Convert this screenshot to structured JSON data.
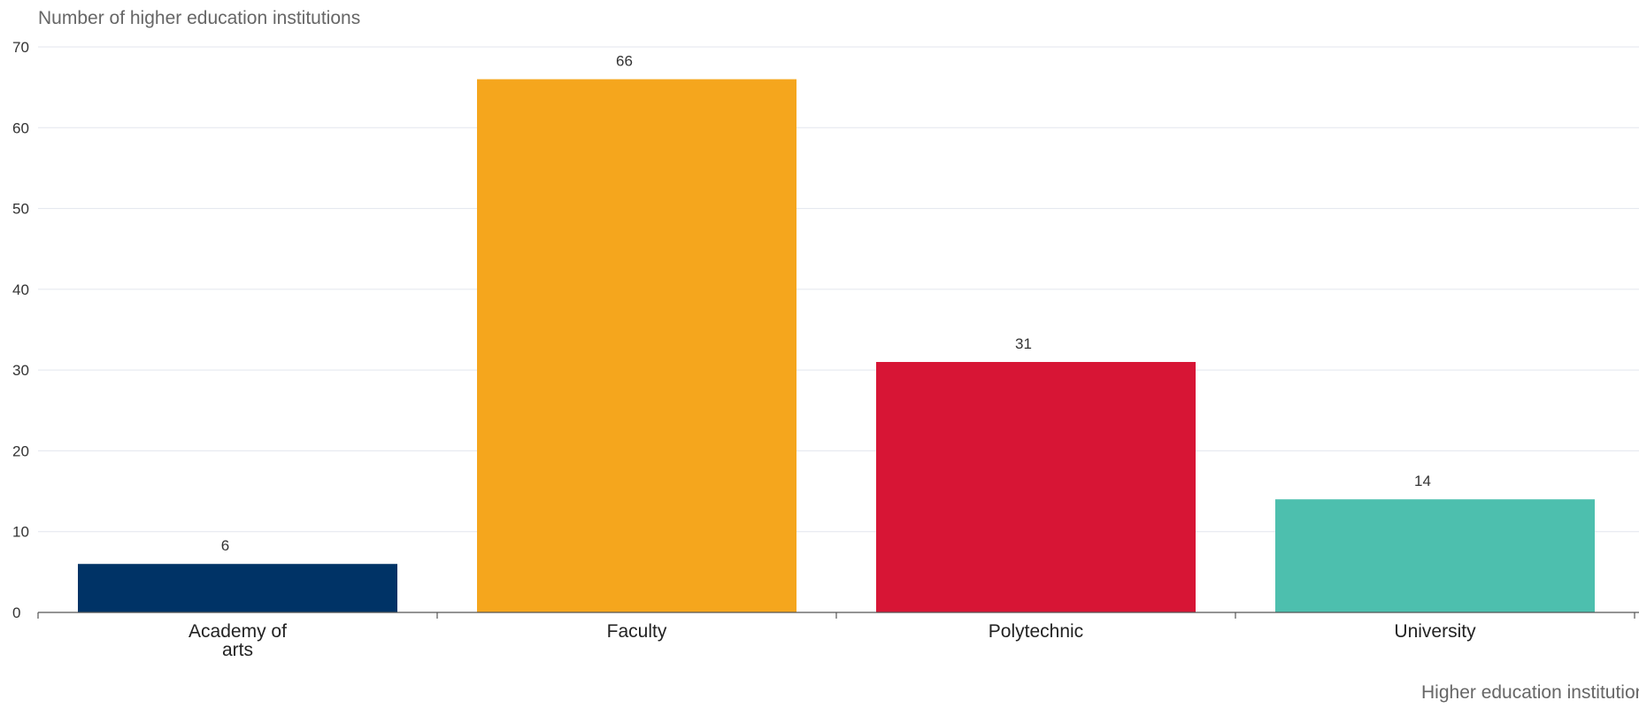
{
  "chart_data": {
    "type": "bar",
    "ylabel": "Number of higher education institutions",
    "xlabel": "Higher education institution",
    "categories": [
      "Academy of arts",
      "Faculty",
      "Polytechnic",
      "University"
    ],
    "category_lines": [
      [
        "Academy of",
        "arts"
      ],
      [
        "Faculty"
      ],
      [
        "Polytechnic"
      ],
      [
        "University"
      ]
    ],
    "values": [
      6,
      66,
      31,
      14
    ],
    "colors": [
      "#003366",
      "#F5A61D",
      "#D71535",
      "#4DBFAE"
    ],
    "ylim": [
      0,
      70
    ],
    "yticks": [
      0,
      10,
      20,
      30,
      40,
      50,
      60,
      70
    ],
    "grid": true,
    "legend": "none"
  }
}
